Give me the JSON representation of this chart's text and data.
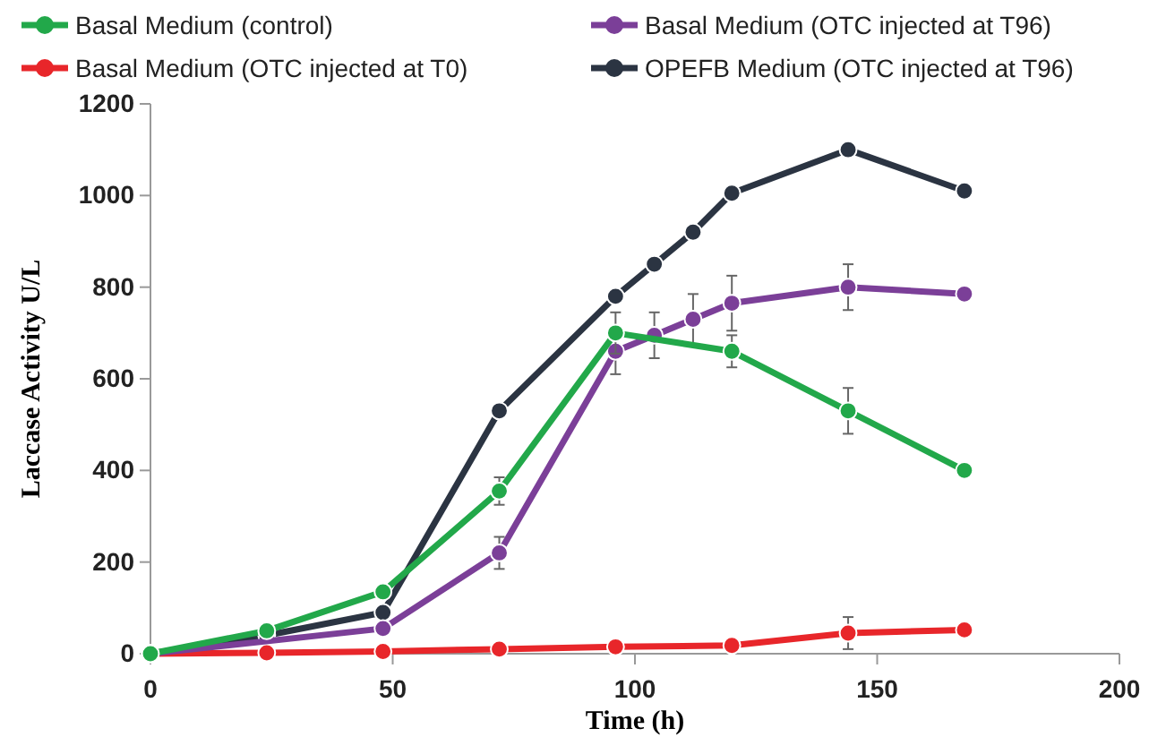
{
  "chart_data": {
    "type": "line",
    "xlabel": "Time (h)",
    "ylabel": "Laccase Activity U/L",
    "xlim": [
      0,
      200
    ],
    "xticks": [
      0,
      50,
      100,
      150,
      200
    ],
    "ylim": [
      0,
      1200
    ],
    "yticks": [
      0,
      200,
      400,
      600,
      800,
      1000,
      1200
    ],
    "grid": false,
    "legend": "top",
    "marker": "circle",
    "line_style": "solid",
    "series": [
      {
        "name": "Basal Medium (control)",
        "color": "#22a84a",
        "x": [
          0,
          24,
          48,
          72,
          96,
          120,
          144,
          168
        ],
        "values": [
          0,
          50,
          135,
          355,
          700,
          660,
          530,
          400
        ],
        "errors": [
          null,
          null,
          null,
          30,
          45,
          35,
          50,
          null
        ]
      },
      {
        "name": "Basal Medium (OTC injected at T96)",
        "color": "#7b3f98",
        "x": [
          0,
          24,
          48,
          72,
          96,
          104,
          112,
          120,
          144,
          168
        ],
        "values": [
          0,
          null,
          55,
          220,
          660,
          695,
          730,
          765,
          800,
          785
        ],
        "errors": [
          null,
          null,
          null,
          35,
          50,
          50,
          55,
          60,
          50,
          null
        ]
      },
      {
        "name": "Basal Medium (OTC injected at T0)",
        "color": "#e8262a",
        "x": [
          0,
          24,
          48,
          72,
          96,
          120,
          144,
          168
        ],
        "values": [
          0,
          2,
          5,
          10,
          15,
          18,
          45,
          52
        ],
        "errors": [
          null,
          null,
          null,
          null,
          null,
          null,
          35,
          null
        ]
      },
      {
        "name": "OPEFB Medium (OTC injected at T96)",
        "color": "#2b3442",
        "x": [
          0,
          24,
          48,
          72,
          96,
          104,
          112,
          120,
          144,
          168
        ],
        "values": [
          0,
          40,
          90,
          530,
          780,
          850,
          920,
          1005,
          1100,
          1010
        ]
      }
    ]
  }
}
